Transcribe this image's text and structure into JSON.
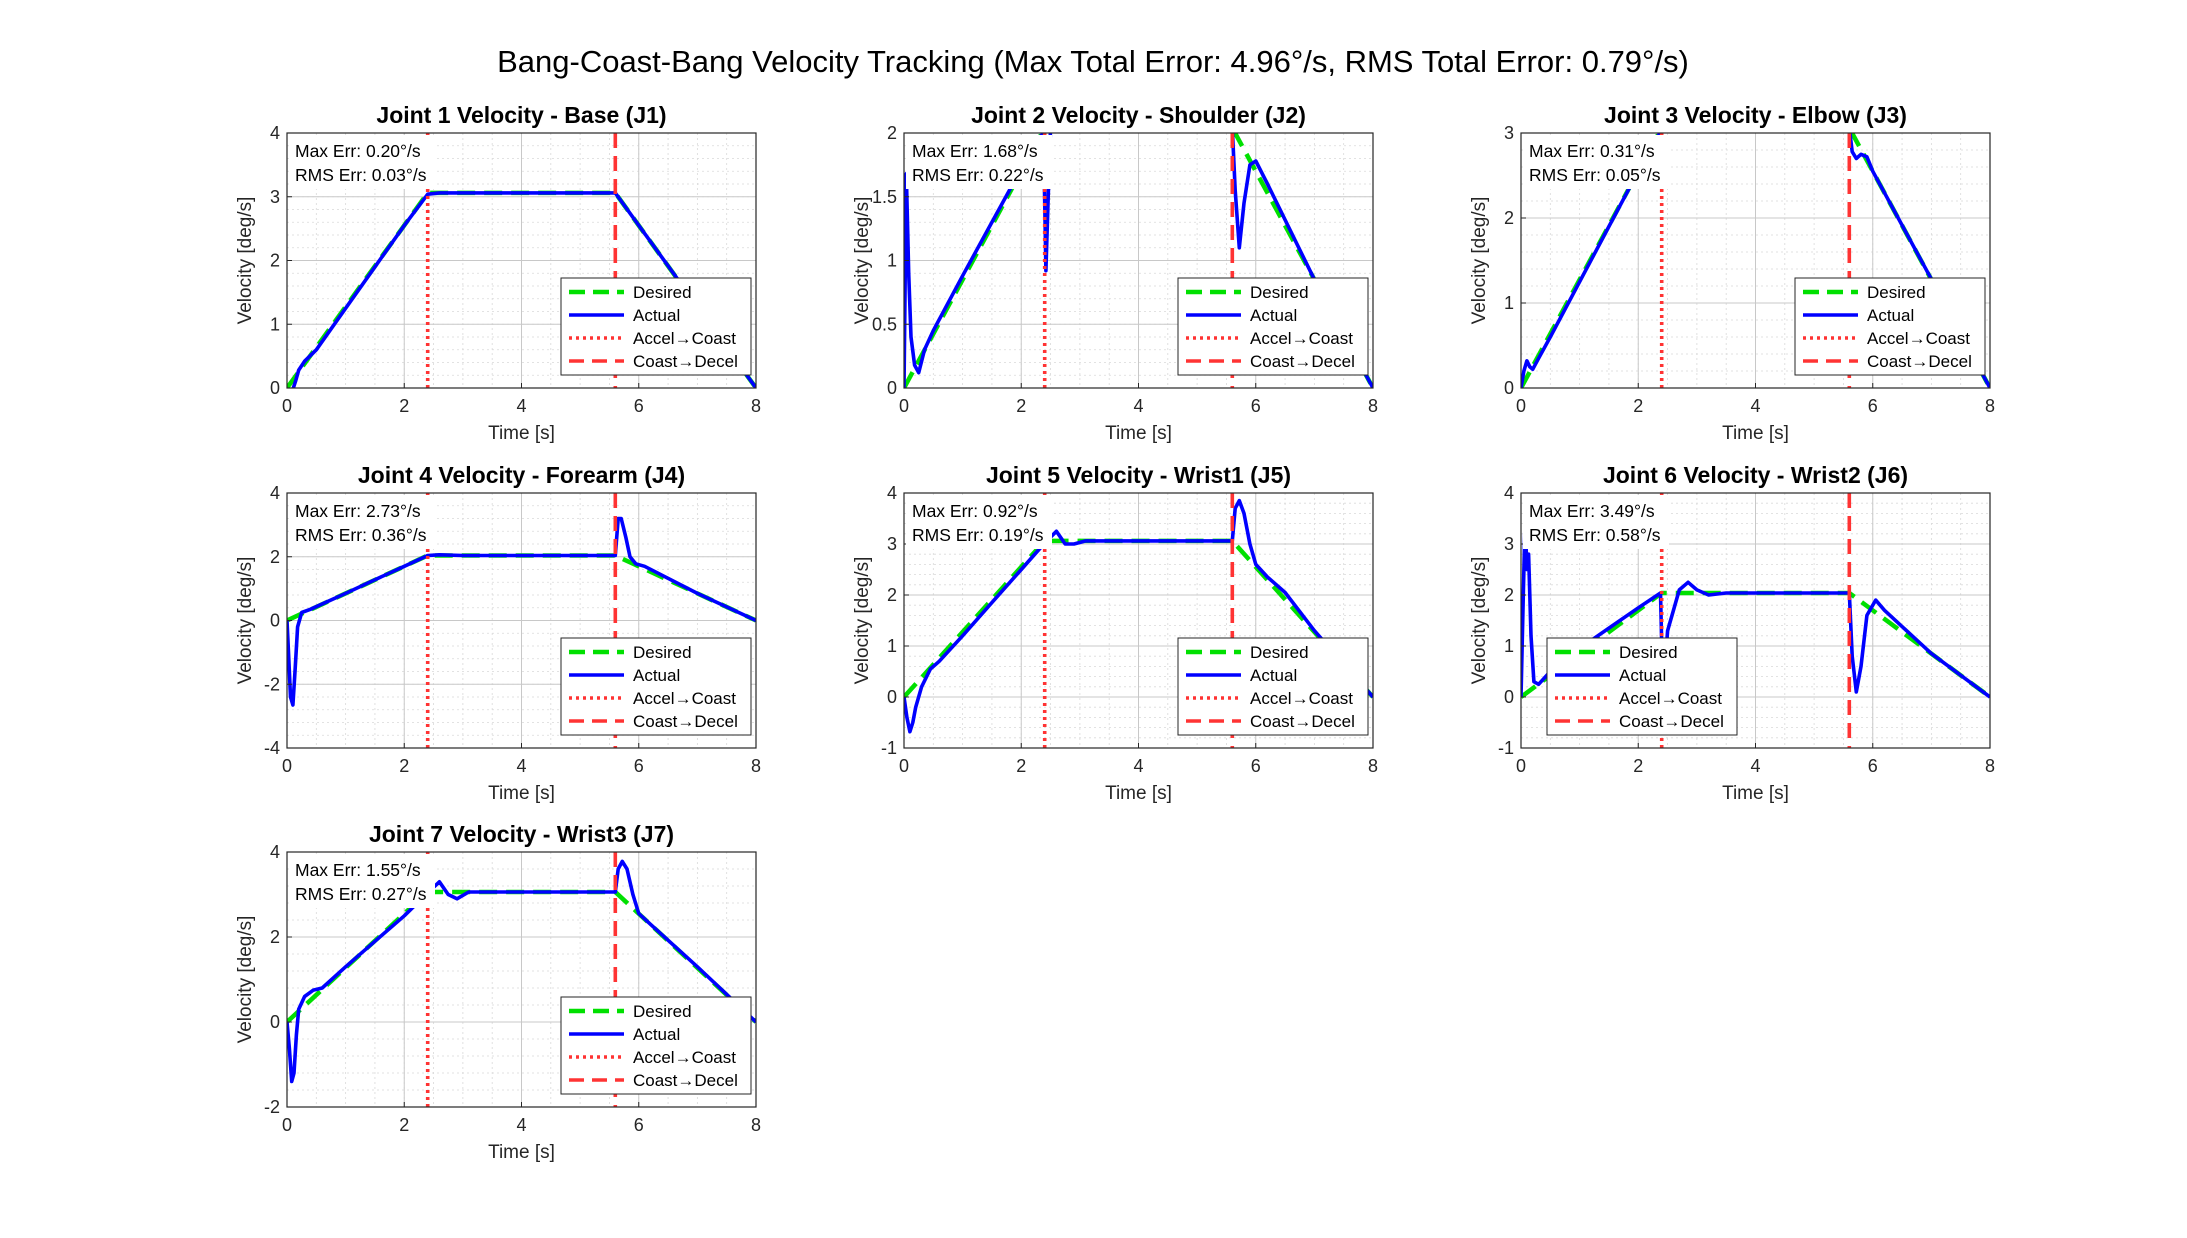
{
  "figure": {
    "suptitle": "Bang-Coast-Bang Velocity Tracking (Max Total Error: 4.96°/s, RMS Total Error: 0.79°/s)"
  },
  "legend": {
    "desired": "Desired",
    "actual": "Actual",
    "accel_coast": "Accel→Coast",
    "coast_decel": "Coast→Decel"
  },
  "colors": {
    "desired": "#00e000",
    "actual": "#0000ff",
    "transition": "#ff3333",
    "grid": "#d9d9d9"
  },
  "chart_data": [
    {
      "type": "line",
      "title": "Joint 1 Velocity - Base (J1)",
      "xlabel": "Time [s]",
      "ylabel": "Velocity [deg/s]",
      "xlim": [
        0,
        8
      ],
      "ylim": [
        0,
        4
      ],
      "xticks": [
        0,
        2,
        4,
        6,
        8
      ],
      "yticks": [
        0,
        1,
        2,
        3,
        4
      ],
      "max_err": "Max Err: 0.20°/s",
      "rms_err": "RMS Err: 0.03°/s",
      "transitions": [
        2.4,
        5.6
      ],
      "series": [
        {
          "name": "Desired",
          "x": [
            0,
            2.4,
            5.6,
            8
          ],
          "y": [
            0,
            3.06,
            3.06,
            0
          ]
        },
        {
          "name": "Actual",
          "x": [
            0,
            0.05,
            0.1,
            0.15,
            0.2,
            0.3,
            0.5,
            1.0,
            1.5,
            2.0,
            2.4,
            2.6,
            3.0,
            4.0,
            5.0,
            5.6,
            6.0,
            7.0,
            8.0
          ],
          "y": [
            0,
            -0.12,
            -0.02,
            0.12,
            0.28,
            0.42,
            0.6,
            1.25,
            1.9,
            2.55,
            3.04,
            3.06,
            3.06,
            3.06,
            3.06,
            3.06,
            2.55,
            1.28,
            0
          ]
        }
      ]
    },
    {
      "type": "line",
      "title": "Joint 2 Velocity - Shoulder (J2)",
      "xlabel": "Time [s]",
      "ylabel": "Velocity [deg/s]",
      "xlim": [
        0,
        8
      ],
      "ylim": [
        0,
        2
      ],
      "xticks": [
        0,
        2,
        4,
        6,
        8
      ],
      "yticks": [
        0,
        0.5,
        1,
        1.5,
        2
      ],
      "max_err": "Max Err: 1.68°/s",
      "rms_err": "RMS Err: 0.22°/s",
      "transitions": [
        2.4,
        5.6
      ],
      "series": [
        {
          "name": "Desired",
          "x": [
            0,
            2.4,
            5.6,
            8
          ],
          "y": [
            0,
            2.04,
            2.04,
            0
          ]
        },
        {
          "name": "Actual",
          "x": [
            0,
            0.04,
            0.08,
            0.12,
            0.18,
            0.25,
            0.35,
            0.5,
            1.0,
            1.5,
            2.0,
            2.3,
            2.38,
            2.42,
            2.46,
            2.5,
            2.55,
            2.62,
            2.7,
            3.0,
            4.0,
            5.0,
            5.6,
            5.65,
            5.72,
            5.8,
            5.9,
            6.0,
            6.2,
            7.0,
            8.0
          ],
          "y": [
            0,
            1.68,
            0.9,
            0.4,
            0.18,
            0.12,
            0.3,
            0.45,
            0.88,
            1.3,
            1.72,
            1.96,
            2.0,
            0.92,
            1.5,
            2.05,
            2.08,
            2.06,
            2.04,
            2.04,
            2.04,
            2.04,
            2.04,
            1.55,
            1.1,
            1.45,
            1.75,
            1.78,
            1.6,
            0.85,
            0
          ]
        }
      ]
    },
    {
      "type": "line",
      "title": "Joint 3 Velocity - Elbow (J3)",
      "xlabel": "Time [s]",
      "ylabel": "Velocity [deg/s]",
      "xlim": [
        0,
        8
      ],
      "ylim": [
        0,
        3
      ],
      "xticks": [
        0,
        2,
        4,
        6,
        8
      ],
      "yticks": [
        0,
        1,
        2,
        3
      ],
      "max_err": "Max Err: 0.31°/s",
      "rms_err": "RMS Err: 0.05°/s",
      "transitions": [
        2.4,
        5.6
      ],
      "series": [
        {
          "name": "Desired",
          "x": [
            0,
            2.4,
            5.6,
            8
          ],
          "y": [
            0,
            3.06,
            3.06,
            0
          ]
        },
        {
          "name": "Actual",
          "x": [
            0,
            0.05,
            0.1,
            0.15,
            0.2,
            0.3,
            0.5,
            1.0,
            1.5,
            2.0,
            2.4,
            2.6,
            3.0,
            4.0,
            5.0,
            5.6,
            5.65,
            5.72,
            5.8,
            5.9,
            6.0,
            7.0,
            8.0
          ],
          "y": [
            0,
            0.2,
            0.32,
            0.25,
            0.22,
            0.35,
            0.6,
            1.25,
            1.9,
            2.55,
            3.04,
            3.06,
            3.06,
            3.06,
            3.06,
            3.06,
            2.78,
            2.7,
            2.75,
            2.72,
            2.55,
            1.28,
            0
          ]
        }
      ]
    },
    {
      "type": "line",
      "title": "Joint 4 Velocity - Forearm (J4)",
      "xlabel": "Time [s]",
      "ylabel": "Velocity [deg/s]",
      "xlim": [
        0,
        8
      ],
      "ylim": [
        -4,
        4
      ],
      "xticks": [
        0,
        2,
        4,
        6,
        8
      ],
      "yticks": [
        -4,
        -2,
        0,
        2,
        4
      ],
      "max_err": "Max Err: 2.73°/s",
      "rms_err": "RMS Err: 0.36°/s",
      "transitions": [
        2.4,
        5.6
      ],
      "series": [
        {
          "name": "Desired",
          "x": [
            0,
            2.4,
            5.6,
            8
          ],
          "y": [
            0,
            2.04,
            2.04,
            0
          ]
        },
        {
          "name": "Actual",
          "x": [
            0,
            0.03,
            0.06,
            0.1,
            0.14,
            0.18,
            0.25,
            0.4,
            1.0,
            1.5,
            2.0,
            2.4,
            2.6,
            3.0,
            4.0,
            5.0,
            5.6,
            5.65,
            5.7,
            5.78,
            5.85,
            5.95,
            6.1,
            7.0,
            8.0
          ],
          "y": [
            0,
            -1.2,
            -2.4,
            -2.65,
            -1.5,
            -0.2,
            0.25,
            0.35,
            0.85,
            1.28,
            1.7,
            2.04,
            2.06,
            2.04,
            2.04,
            2.04,
            2.04,
            3.2,
            3.2,
            2.6,
            2.0,
            1.78,
            1.7,
            0.85,
            0
          ]
        }
      ]
    },
    {
      "type": "line",
      "title": "Joint 5 Velocity - Wrist1 (J5)",
      "xlabel": "Time [s]",
      "ylabel": "Velocity [deg/s]",
      "xlim": [
        0,
        8
      ],
      "ylim": [
        -1,
        4
      ],
      "xticks": [
        0,
        2,
        4,
        6,
        8
      ],
      "yticks": [
        -1,
        0,
        1,
        2,
        3,
        4
      ],
      "max_err": "Max Err: 0.92°/s",
      "rms_err": "RMS Err: 0.19°/s",
      "transitions": [
        2.4,
        5.6
      ],
      "series": [
        {
          "name": "Desired",
          "x": [
            0,
            2.4,
            5.6,
            8
          ],
          "y": [
            0,
            3.06,
            3.06,
            0
          ]
        },
        {
          "name": "Actual",
          "x": [
            0,
            0.05,
            0.1,
            0.15,
            0.2,
            0.3,
            0.45,
            0.6,
            1.0,
            1.5,
            2.0,
            2.4,
            2.6,
            2.75,
            2.9,
            3.1,
            4.0,
            5.0,
            5.6,
            5.65,
            5.72,
            5.8,
            5.9,
            6.0,
            6.2,
            6.5,
            7.0,
            8.0
          ],
          "y": [
            0,
            -0.4,
            -0.68,
            -0.5,
            -0.2,
            0.2,
            0.55,
            0.7,
            1.2,
            1.85,
            2.5,
            3.02,
            3.25,
            3.0,
            3.0,
            3.06,
            3.06,
            3.06,
            3.06,
            3.7,
            3.85,
            3.6,
            3.0,
            2.6,
            2.35,
            2.05,
            1.3,
            0
          ]
        }
      ]
    },
    {
      "type": "line",
      "title": "Joint 6 Velocity - Wrist2 (J6)",
      "xlabel": "Time [s]",
      "ylabel": "Velocity [deg/s]",
      "xlim": [
        0,
        8
      ],
      "ylim": [
        -1,
        4
      ],
      "xticks": [
        0,
        2,
        4,
        6,
        8
      ],
      "yticks": [
        -1,
        0,
        1,
        2,
        3,
        4
      ],
      "max_err": "Max Err: 3.49°/s",
      "rms_err": "RMS Err: 0.58°/s",
      "transitions": [
        2.4,
        5.6
      ],
      "series": [
        {
          "name": "Desired",
          "x": [
            0,
            2.4,
            5.6,
            8
          ],
          "y": [
            0,
            2.04,
            2.04,
            0
          ]
        },
        {
          "name": "Actual",
          "x": [
            0,
            0.04,
            0.07,
            0.1,
            0.13,
            0.17,
            0.22,
            0.3,
            0.5,
            1.0,
            1.5,
            2.0,
            2.38,
            2.42,
            2.5,
            2.7,
            2.85,
            3.0,
            3.2,
            3.5,
            4.0,
            5.0,
            5.6,
            5.65,
            5.72,
            5.8,
            5.9,
            6.05,
            6.2,
            7.0,
            8.0
          ],
          "y": [
            0,
            2.0,
            3.49,
            2.5,
            2.8,
            1.2,
            0.3,
            0.25,
            0.5,
            0.95,
            1.35,
            1.75,
            2.04,
            0.05,
            1.3,
            2.1,
            2.25,
            2.1,
            2.0,
            2.04,
            2.04,
            2.04,
            2.04,
            0.8,
            0.1,
            0.6,
            1.6,
            1.9,
            1.7,
            0.85,
            0
          ]
        }
      ]
    },
    {
      "type": "line",
      "title": "Joint 7 Velocity - Wrist3 (J7)",
      "xlabel": "Time [s]",
      "ylabel": "Velocity [deg/s]",
      "xlim": [
        0,
        8
      ],
      "ylim": [
        -2,
        4
      ],
      "xticks": [
        0,
        2,
        4,
        6,
        8
      ],
      "yticks": [
        -2,
        0,
        2,
        4
      ],
      "max_err": "Max Err: 1.55°/s",
      "rms_err": "RMS Err: 0.27°/s",
      "transitions": [
        2.4,
        5.6
      ],
      "series": [
        {
          "name": "Desired",
          "x": [
            0,
            2.4,
            5.6,
            8
          ],
          "y": [
            0,
            3.06,
            3.06,
            0
          ]
        },
        {
          "name": "Actual",
          "x": [
            0,
            0.04,
            0.08,
            0.12,
            0.16,
            0.2,
            0.3,
            0.45,
            0.6,
            1.0,
            1.5,
            2.0,
            2.4,
            2.6,
            2.75,
            2.9,
            3.1,
            4.0,
            5.0,
            5.6,
            5.65,
            5.72,
            5.8,
            5.9,
            6.0,
            6.2,
            7.0,
            8.0
          ],
          "y": [
            0,
            -0.6,
            -1.4,
            -1.2,
            -0.3,
            0.3,
            0.6,
            0.75,
            0.8,
            1.3,
            1.9,
            2.5,
            3.04,
            3.3,
            3.0,
            2.9,
            3.06,
            3.06,
            3.06,
            3.06,
            3.6,
            3.78,
            3.6,
            3.0,
            2.55,
            2.3,
            1.3,
            0
          ]
        }
      ]
    }
  ]
}
